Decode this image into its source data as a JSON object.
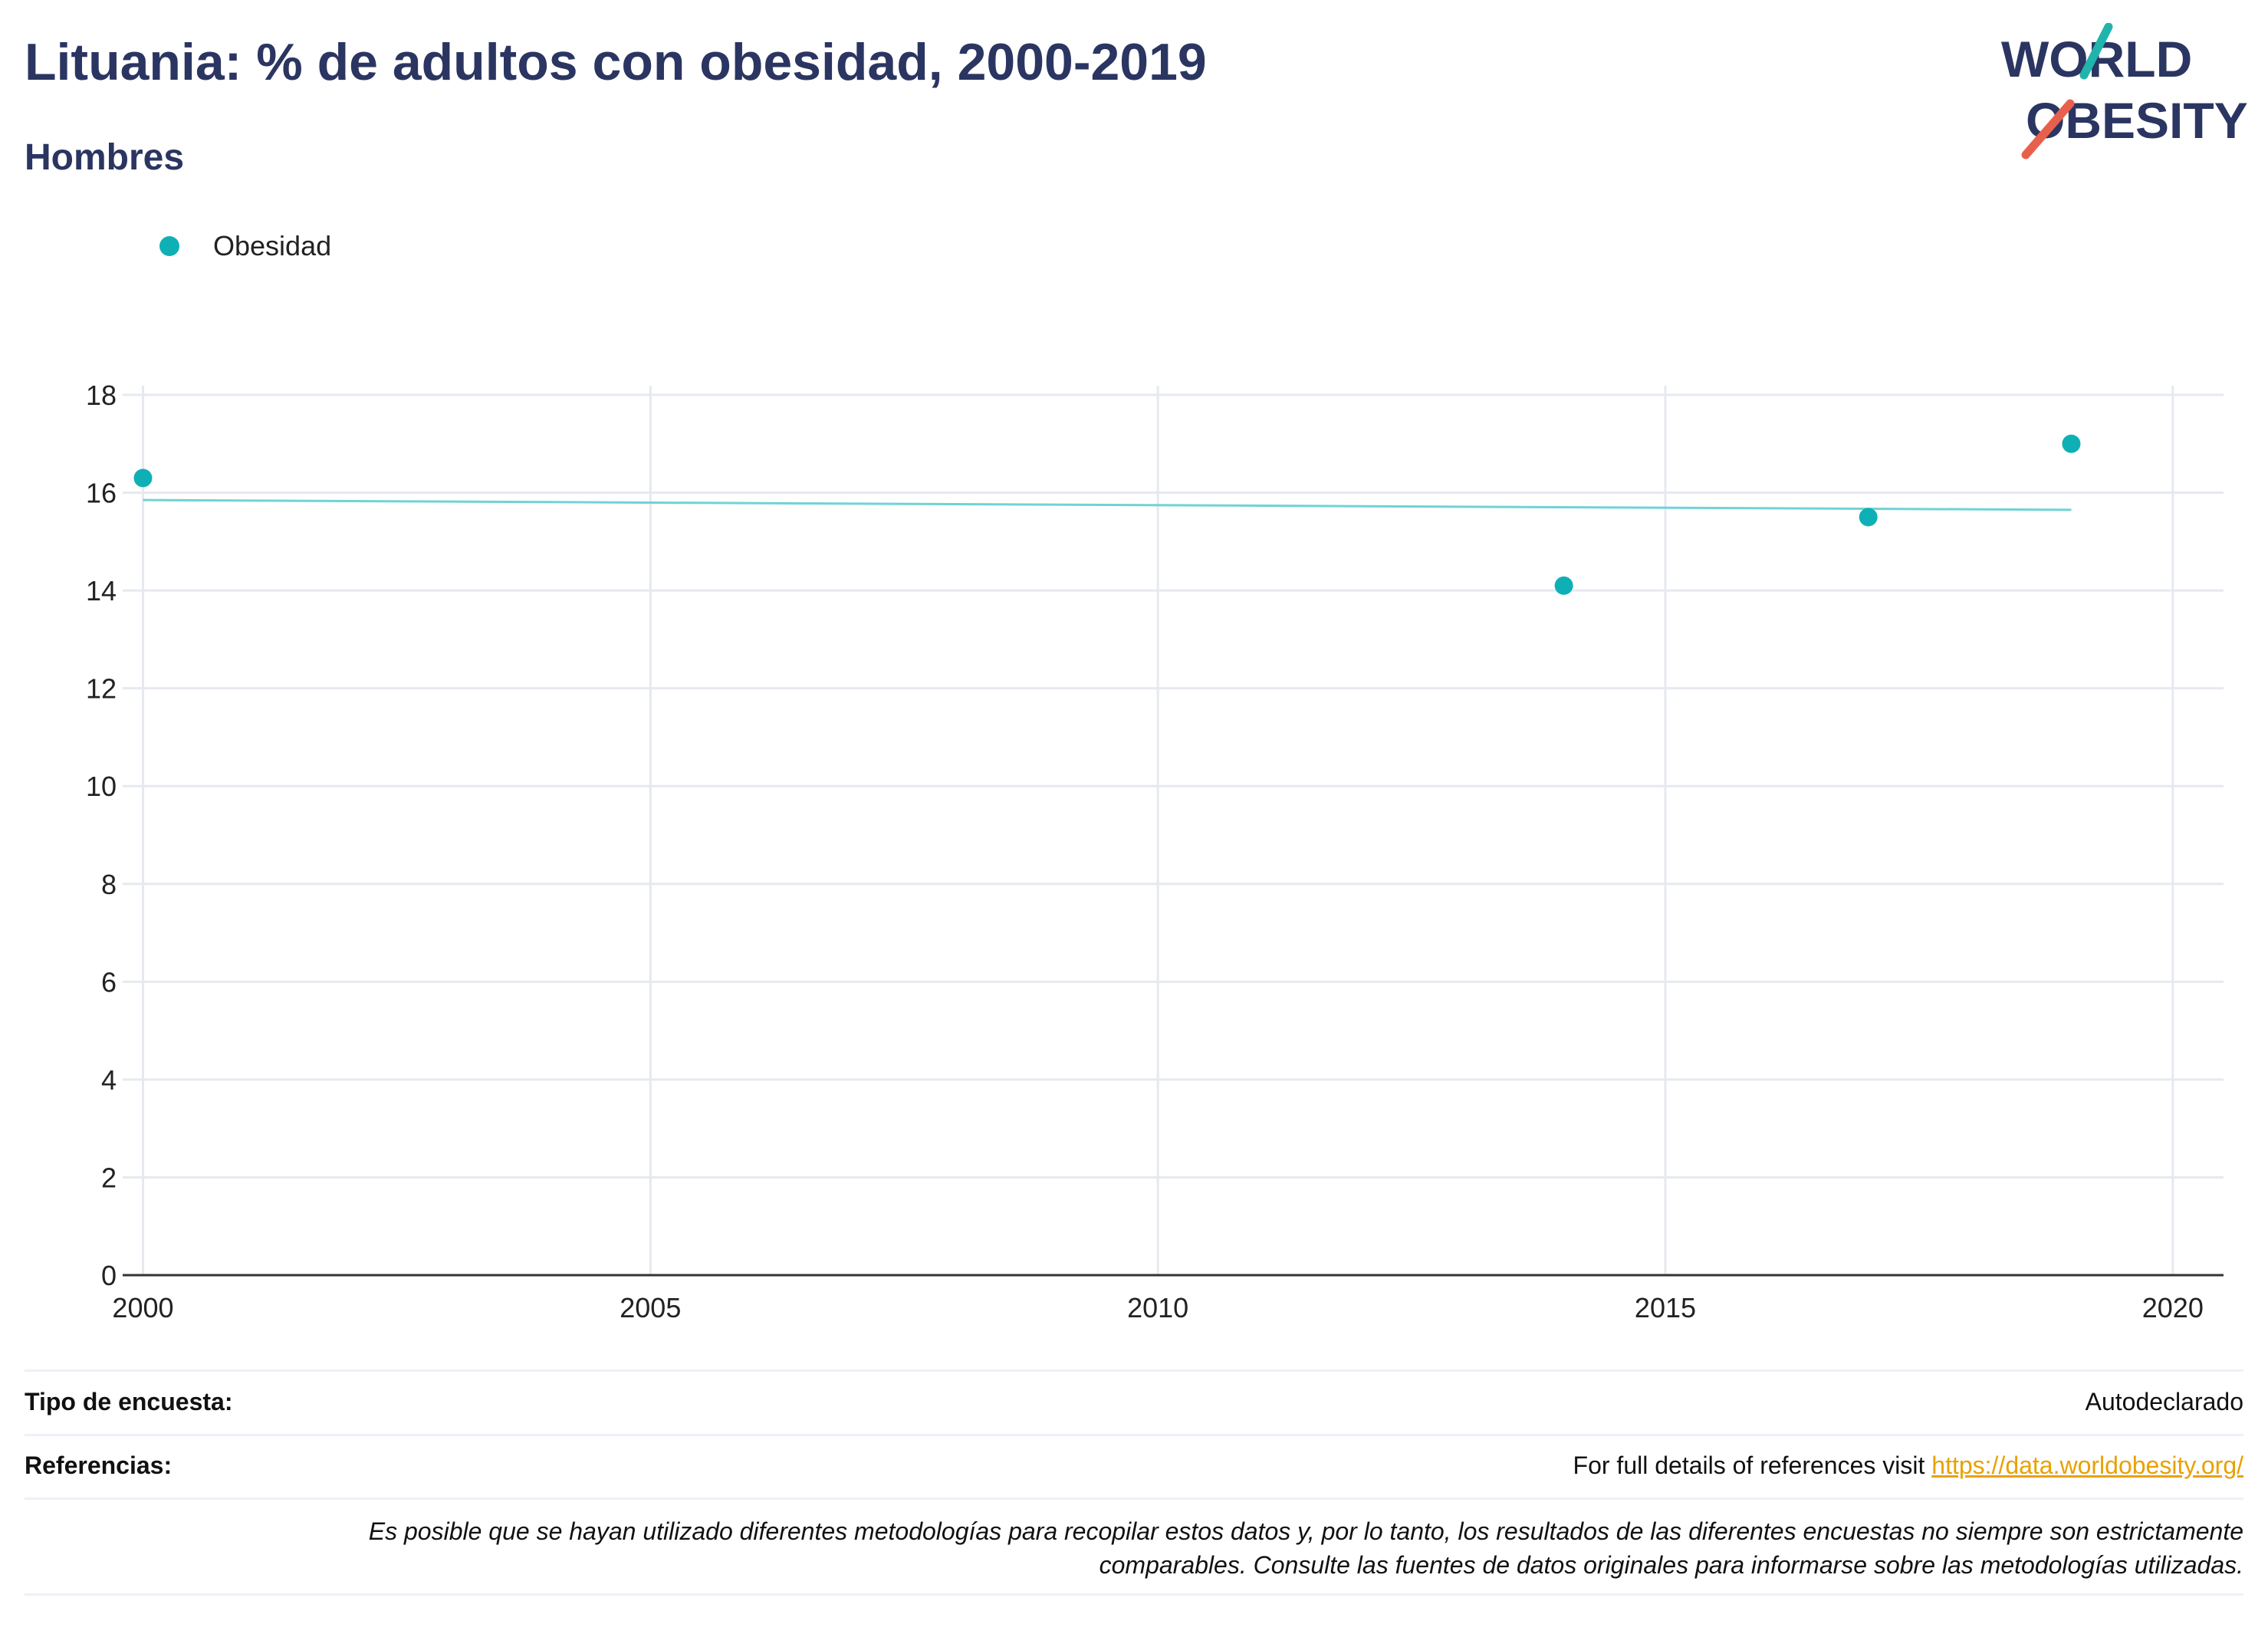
{
  "header": {
    "title": "Lituania: % de adultos con obesidad, 2000-2019",
    "subtitle": "Hombres",
    "logo_line1": "WORLD",
    "logo_line2": "OBESITY"
  },
  "legend": {
    "label": "Obesidad"
  },
  "colors": {
    "accent": "#0fb0b5",
    "title": "#2b3561",
    "link": "#e8a100",
    "logo_red": "#e8604c"
  },
  "chart_data": {
    "type": "scatter",
    "title": "Lituania: % de adultos con obesidad, 2000-2019",
    "subtitle": "Hombres",
    "xlim": [
      1999.8,
      2020.5
    ],
    "ylim": [
      0,
      18
    ],
    "xticks": [
      2000,
      2005,
      2010,
      2015,
      2020
    ],
    "yticks": [
      0,
      2,
      4,
      6,
      8,
      10,
      12,
      14,
      16,
      18
    ],
    "grid": true,
    "legend_position": "top-left",
    "series": [
      {
        "name": "Obesidad",
        "points": [
          {
            "x": 2000,
            "y": 16.3
          },
          {
            "x": 2014,
            "y": 14.1
          },
          {
            "x": 2017,
            "y": 15.5
          },
          {
            "x": 2019,
            "y": 17.0
          }
        ]
      }
    ],
    "trendline": {
      "x": [
        2000,
        2019
      ],
      "y": [
        15.85,
        15.65
      ]
    }
  },
  "info": {
    "survey_type_label": "Tipo de encuesta:",
    "survey_type_value": "Autodeclarado",
    "references_label": "Referencias:",
    "references_text": "For full details of references visit",
    "references_link": "https://data.worldobesity.org/",
    "note_line1": "Es posible que se hayan utilizado diferentes metodologías para recopilar estos datos y, por lo tanto, los resultados de las diferentes encuestas no siempre son estrictamente",
    "note_line2": "comparables. Consulte las fuentes de datos originales para informarse sobre las metodologías utilizadas."
  }
}
